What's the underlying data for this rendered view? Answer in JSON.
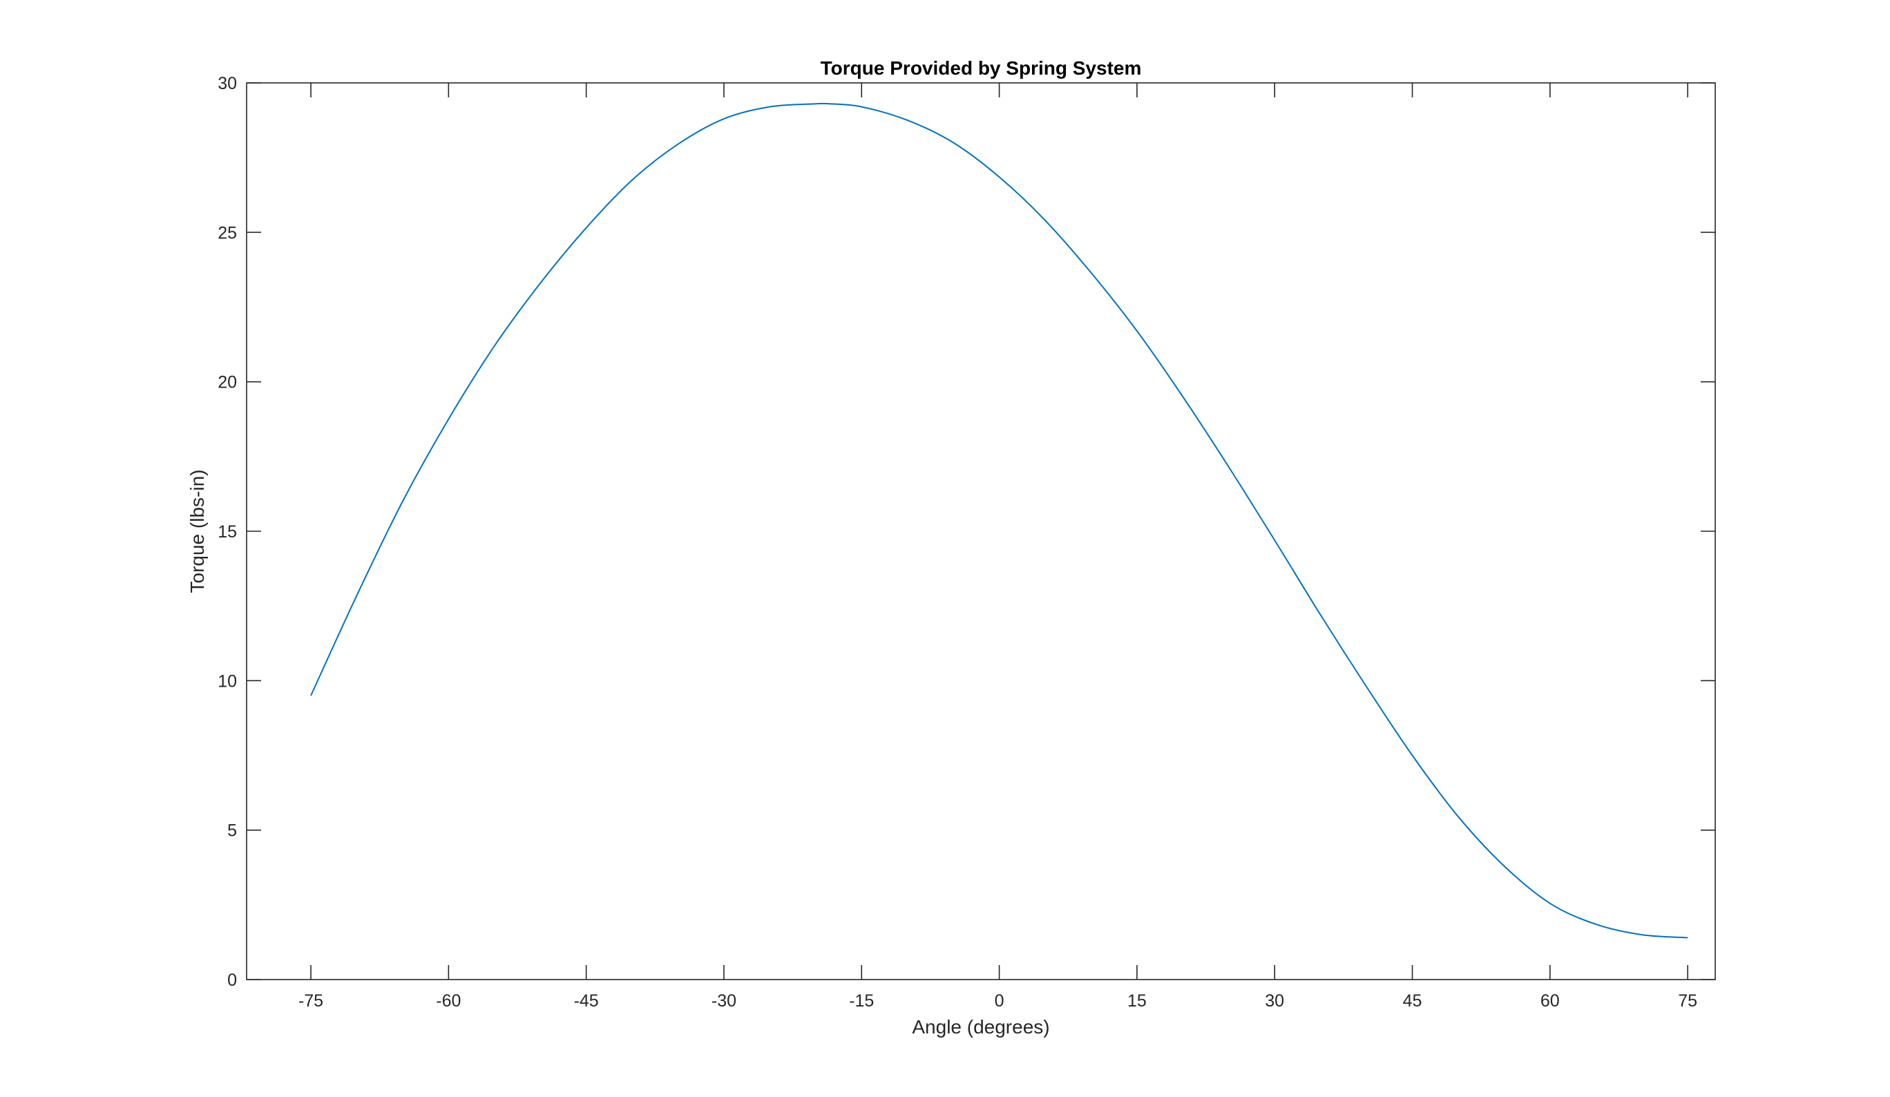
{
  "chart_data": {
    "type": "line",
    "title": "Torque Provided by Spring System",
    "xlabel": "Angle (degrees)",
    "ylabel": "Torque (lbs-in)",
    "xlim": [
      -82,
      78
    ],
    "ylim": [
      0,
      30
    ],
    "xticks": [
      -75,
      -60,
      -45,
      -30,
      -15,
      0,
      15,
      30,
      45,
      60,
      75
    ],
    "xtick_labels": [
      "-75",
      "-60",
      "-45",
      "-30",
      "-15",
      "0",
      "15",
      "30",
      "45",
      "60",
      "75"
    ],
    "yticks": [
      0,
      5,
      10,
      15,
      20,
      25,
      30
    ],
    "ytick_labels": [
      "0",
      "5",
      "10",
      "15",
      "20",
      "25",
      "30"
    ],
    "grid": false,
    "box": true,
    "colors": {
      "series": "#0072BD",
      "axes": "#262626",
      "background": "#ffffff"
    },
    "series": [
      {
        "x": [
          -75,
          -70,
          -65,
          -60,
          -55,
          -50,
          -45,
          -40,
          -35,
          -30,
          -25,
          -20,
          -18.5,
          -15,
          -10,
          -5,
          0,
          5,
          10,
          15,
          20,
          25,
          30,
          35,
          40,
          45,
          50,
          55,
          60,
          65,
          70,
          75
        ],
        "y": [
          9.5,
          12.85,
          16.0,
          18.75,
          21.2,
          23.3,
          25.15,
          26.75,
          27.95,
          28.8,
          29.2,
          29.3,
          29.3,
          29.2,
          28.75,
          28.0,
          26.85,
          25.4,
          23.65,
          21.7,
          19.5,
          17.15,
          14.7,
          12.2,
          9.8,
          7.5,
          5.45,
          3.8,
          2.55,
          1.85,
          1.5,
          1.4
        ]
      }
    ]
  }
}
